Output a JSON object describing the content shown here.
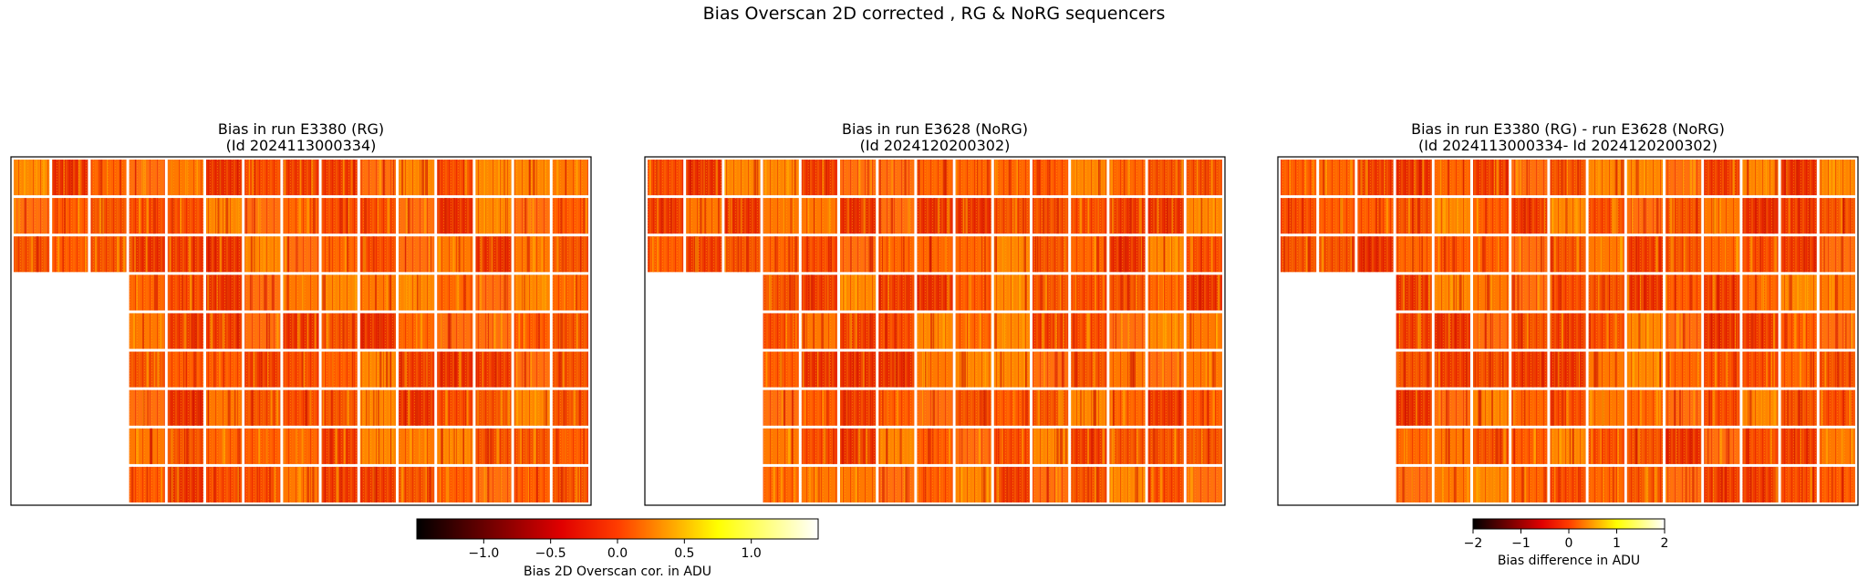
{
  "figure": {
    "suptitle": "Bias Overscan 2D corrected , RG & NoRG sequencers"
  },
  "chart_data": [
    {
      "type": "heatmap",
      "title_line1": "Bias in run E3380 (RG)",
      "title_line2": "(Id 2024113000334)",
      "colormap": "hot",
      "grid": {
        "rows": 9,
        "cols": 15
      },
      "missing_region": "rows 4-9, columns 1-3 (blank)",
      "colorbar": "shared-absolute"
    },
    {
      "type": "heatmap",
      "title_line1": "Bias in run E3628 (NoRG)",
      "title_line2": "(Id 2024120200302)",
      "colormap": "hot",
      "grid": {
        "rows": 9,
        "cols": 15
      },
      "missing_region": "rows 4-9, columns 1-3 (blank)",
      "colorbar": "shared-absolute"
    },
    {
      "type": "heatmap",
      "title_line1": "Bias in run E3380 (RG) - run E3628 (NoRG)",
      "title_line2": "(Id 2024113000334- Id 2024120200302)",
      "colormap": "hot",
      "grid": {
        "rows": 9,
        "cols": 15
      },
      "missing_region": "rows 4-9, columns 1-3 (blank)",
      "colorbar": "difference"
    }
  ],
  "colorbars": {
    "absolute": {
      "label": "Bias 2D Overscan cor. in ADU",
      "vmin": -1.5,
      "vmax": 1.5,
      "ticks": [
        -1.0,
        -0.5,
        0.0,
        0.5,
        1.0
      ],
      "tick_labels": [
        "−1.0",
        "−0.5",
        "0.0",
        "0.5",
        "1.0"
      ]
    },
    "difference": {
      "label": "Bias difference in ADU",
      "vmin": -2,
      "vmax": 2,
      "ticks": [
        -2,
        -1,
        0,
        1,
        2
      ],
      "tick_labels": [
        "−2",
        "−1",
        "0",
        "1",
        "2"
      ]
    }
  },
  "colors": {
    "blank_tile": "#ffffff",
    "frame": "#000000",
    "cmap_stops": [
      "#000000",
      "#ff0000",
      "#ffff00",
      "#ffffff"
    ]
  }
}
